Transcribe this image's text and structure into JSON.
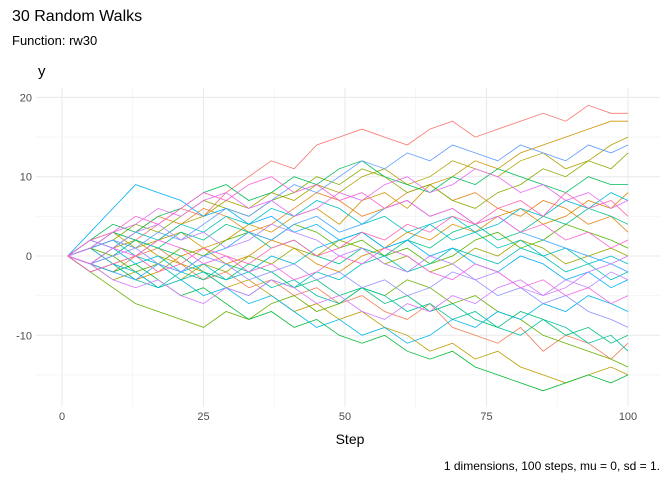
{
  "chart_data": {
    "type": "line",
    "title": "30 Random Walks",
    "subtitle": "Function: rw30",
    "xlabel": "Step",
    "ylabel": "y",
    "caption": "1 dimensions, 100 steps, mu = 0, sd = 1.",
    "xlim": [
      -4,
      105
    ],
    "ylim": [
      -19.5,
      21
    ],
    "x_ticks": [
      0,
      25,
      50,
      75,
      100
    ],
    "y_ticks": [
      -10,
      0,
      10,
      20
    ],
    "grid": true,
    "legend": "none",
    "x": [
      1,
      5,
      9,
      13,
      17,
      21,
      25,
      29,
      33,
      37,
      41,
      45,
      49,
      53,
      57,
      61,
      65,
      69,
      73,
      77,
      81,
      85,
      89,
      93,
      97,
      100
    ],
    "colors": [
      "#F8766D",
      "#F17D50",
      "#E7851E",
      "#DB8E00",
      "#CD9600",
      "#BE9C00",
      "#AEA200",
      "#9AA800",
      "#85AD00",
      "#68B100",
      "#53B400",
      "#00BA38",
      "#00BC59",
      "#00BF74",
      "#00C08B",
      "#00C1A0",
      "#00C0B4",
      "#00BFC4",
      "#00BBD6",
      "#00B6E7",
      "#00B0F6",
      "#35A2FF",
      "#619CFF",
      "#8F91FF",
      "#B983FF",
      "#D376FF",
      "#E76BF3",
      "#F564E3",
      "#FD61D1",
      "#FF64B0"
    ],
    "series": [
      {
        "values": [
          0,
          1,
          3,
          2,
          4,
          6,
          5,
          8,
          10,
          12,
          11,
          14,
          15,
          16,
          15,
          14,
          16,
          17,
          15,
          16,
          17,
          18,
          17,
          19,
          18,
          18
        ]
      },
      {
        "values": [
          0,
          -1,
          -2,
          0,
          1,
          -1,
          -3,
          -2,
          -4,
          -3,
          -5,
          -4,
          -6,
          -5,
          -7,
          -8,
          -6,
          -9,
          -10,
          -11,
          -9,
          -12,
          -10,
          -11,
          -13,
          -11
        ]
      },
      {
        "values": [
          0,
          2,
          1,
          3,
          5,
          4,
          6,
          5,
          3,
          4,
          6,
          8,
          7,
          5,
          6,
          8,
          9,
          7,
          8,
          6,
          5,
          7,
          6,
          4,
          5,
          3
        ]
      },
      {
        "values": [
          0,
          -2,
          -1,
          -3,
          -2,
          0,
          1,
          -1,
          0,
          2,
          1,
          -1,
          -2,
          0,
          1,
          3,
          2,
          4,
          3,
          5,
          6,
          4,
          5,
          7,
          6,
          8
        ]
      },
      {
        "values": [
          0,
          1,
          -1,
          0,
          2,
          3,
          1,
          2,
          4,
          3,
          5,
          6,
          4,
          7,
          8,
          6,
          9,
          10,
          12,
          11,
          13,
          14,
          15,
          16,
          17,
          17
        ]
      },
      {
        "values": [
          0,
          -1,
          1,
          2,
          0,
          -1,
          -2,
          -4,
          -3,
          -5,
          -7,
          -6,
          -8,
          -7,
          -9,
          -10,
          -12,
          -11,
          -13,
          -12,
          -14,
          -15,
          -16,
          -15,
          -14,
          -15
        ]
      },
      {
        "values": [
          0,
          2,
          3,
          1,
          2,
          4,
          5,
          7,
          6,
          8,
          7,
          9,
          8,
          10,
          11,
          9,
          10,
          12,
          11,
          10,
          12,
          13,
          11,
          12,
          14,
          15
        ]
      },
      {
        "values": [
          0,
          -1,
          -3,
          -2,
          -4,
          -3,
          -1,
          -2,
          0,
          -1,
          1,
          0,
          2,
          1,
          -1,
          0,
          -2,
          -1,
          1,
          0,
          2,
          1,
          -1,
          0,
          1,
          0
        ]
      },
      {
        "values": [
          0,
          1,
          2,
          4,
          3,
          5,
          7,
          6,
          5,
          7,
          8,
          10,
          9,
          11,
          10,
          8,
          9,
          7,
          6,
          8,
          9,
          11,
          10,
          12,
          11,
          13
        ]
      },
      {
        "values": [
          0,
          -2,
          -4,
          -6,
          -7,
          -8,
          -9,
          -7,
          -8,
          -6,
          -5,
          -7,
          -6,
          -4,
          -5,
          -3,
          -4,
          -6,
          -5,
          -7,
          -8,
          -10,
          -11,
          -12,
          -13,
          -14
        ]
      },
      {
        "values": [
          0,
          1,
          0,
          -2,
          -1,
          1,
          0,
          2,
          3,
          2,
          4,
          3,
          1,
          2,
          0,
          1,
          -1,
          0,
          2,
          3,
          1,
          2,
          4,
          3,
          2,
          1
        ]
      },
      {
        "values": [
          0,
          -1,
          -2,
          -1,
          -3,
          -5,
          -4,
          -6,
          -8,
          -7,
          -9,
          -8,
          -10,
          -11,
          -10,
          -12,
          -13,
          -12,
          -14,
          -15,
          -16,
          -17,
          -16,
          -15,
          -16,
          -15
        ]
      },
      {
        "values": [
          0,
          2,
          4,
          3,
          5,
          6,
          8,
          9,
          7,
          8,
          10,
          9,
          11,
          12,
          10,
          9,
          8,
          10,
          9,
          11,
          10,
          9,
          8,
          10,
          9,
          9
        ]
      },
      {
        "values": [
          0,
          -1,
          0,
          2,
          1,
          0,
          -2,
          -3,
          -1,
          -2,
          -4,
          -3,
          -5,
          -4,
          -6,
          -5,
          -7,
          -6,
          -8,
          -9,
          -7,
          -8,
          -10,
          -9,
          -11,
          -10
        ]
      },
      {
        "values": [
          0,
          1,
          3,
          2,
          1,
          3,
          2,
          4,
          3,
          1,
          2,
          0,
          -1,
          1,
          0,
          2,
          1,
          3,
          4,
          2,
          3,
          5,
          4,
          6,
          5,
          4
        ]
      },
      {
        "values": [
          0,
          -2,
          -1,
          -3,
          -4,
          -2,
          -3,
          -1,
          -2,
          -4,
          -3,
          -5,
          -6,
          -4,
          -5,
          -7,
          -6,
          -8,
          -7,
          -9,
          -10,
          -8,
          -9,
          -11,
          -10,
          -12
        ]
      },
      {
        "values": [
          0,
          1,
          2,
          0,
          -1,
          -3,
          -2,
          -4,
          -5,
          -3,
          -4,
          -2,
          -3,
          -1,
          0,
          -2,
          -1,
          1,
          0,
          -1,
          1,
          0,
          -2,
          -1,
          -3,
          -2
        ]
      },
      {
        "values": [
          0,
          -1,
          1,
          3,
          2,
          4,
          3,
          5,
          4,
          6,
          5,
          7,
          6,
          4,
          5,
          3,
          4,
          2,
          3,
          1,
          2,
          0,
          1,
          -1,
          0,
          -1
        ]
      },
      {
        "values": [
          0,
          2,
          1,
          -1,
          0,
          -2,
          -1,
          -3,
          -2,
          0,
          -1,
          1,
          2,
          3,
          1,
          2,
          4,
          5,
          3,
          4,
          6,
          5,
          7,
          6,
          8,
          7
        ]
      },
      {
        "values": [
          0,
          1,
          -1,
          -2,
          -4,
          -3,
          -5,
          -4,
          -6,
          -5,
          -7,
          -9,
          -8,
          -10,
          -9,
          -11,
          -10,
          -8,
          -9,
          -7,
          -8,
          -6,
          -7,
          -5,
          -6,
          -7
        ]
      },
      {
        "values": [
          0,
          3,
          6,
          9,
          8,
          7,
          5,
          6,
          4,
          5,
          3,
          4,
          2,
          3,
          1,
          2,
          0,
          1,
          -1,
          -2,
          0,
          -1,
          -3,
          -2,
          -4,
          -3
        ]
      },
      {
        "values": [
          0,
          -1,
          -2,
          -3,
          -1,
          -2,
          0,
          1,
          3,
          2,
          4,
          5,
          3,
          4,
          6,
          7,
          5,
          6,
          4,
          5,
          3,
          2,
          1,
          0,
          -1,
          -2
        ]
      },
      {
        "values": [
          0,
          1,
          2,
          1,
          3,
          2,
          4,
          6,
          5,
          7,
          9,
          8,
          10,
          12,
          11,
          13,
          12,
          14,
          13,
          12,
          14,
          13,
          12,
          14,
          13,
          14
        ]
      },
      {
        "values": [
          0,
          -1,
          0,
          1,
          -1,
          -2,
          0,
          -1,
          -3,
          -2,
          -1,
          -3,
          -2,
          -4,
          -3,
          -5,
          -4,
          -2,
          -3,
          -5,
          -4,
          -6,
          -5,
          -7,
          -8,
          -9
        ]
      },
      {
        "values": [
          0,
          2,
          1,
          3,
          4,
          2,
          3,
          1,
          2,
          4,
          3,
          2,
          0,
          1,
          -1,
          -2,
          0,
          -1,
          -3,
          -2,
          -4,
          -5,
          -3,
          -4,
          -2,
          -3
        ]
      },
      {
        "values": [
          0,
          -1,
          -3,
          -4,
          -3,
          -5,
          -6,
          -4,
          -5,
          -3,
          -4,
          -6,
          -5,
          -7,
          -8,
          -6,
          -7,
          -5,
          -6,
          -4,
          -3,
          -5,
          -4,
          -2,
          -1,
          0
        ]
      },
      {
        "values": [
          0,
          1,
          3,
          4,
          6,
          5,
          7,
          8,
          6,
          7,
          5,
          6,
          8,
          7,
          9,
          10,
          8,
          9,
          11,
          10,
          8,
          9,
          7,
          8,
          6,
          7
        ]
      },
      {
        "values": [
          0,
          -1,
          1,
          0,
          2,
          1,
          -1,
          0,
          -2,
          -1,
          -3,
          -2,
          0,
          -1,
          1,
          0,
          -2,
          -3,
          -1,
          -2,
          -4,
          -3,
          -5,
          -4,
          -6,
          -5
        ]
      },
      {
        "values": [
          0,
          2,
          3,
          5,
          4,
          6,
          8,
          7,
          9,
          10,
          8,
          9,
          7,
          8,
          6,
          7,
          5,
          6,
          4,
          5,
          3,
          4,
          2,
          3,
          1,
          2
        ]
      },
      {
        "values": [
          0,
          -2,
          -1,
          0,
          -2,
          -1,
          1,
          0,
          -1,
          1,
          2,
          0,
          1,
          3,
          2,
          4,
          3,
          5,
          4,
          6,
          7,
          5,
          8,
          6,
          7,
          5
        ]
      }
    ]
  }
}
